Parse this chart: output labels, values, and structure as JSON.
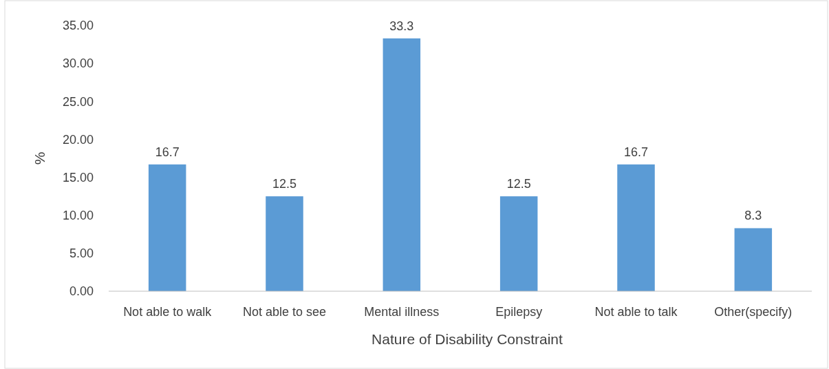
{
  "chart_data": {
    "type": "bar",
    "xlabel": "Nature of Disability Constraint",
    "ylabel": "%",
    "categories": [
      "Not able to walk",
      "Not able to see",
      "Mental illness",
      "Epilepsy",
      "Not able to talk",
      "Other(specify)"
    ],
    "values": [
      16.7,
      12.5,
      33.3,
      12.5,
      16.7,
      8.3
    ],
    "color": "#5b9bd5",
    "ylim": [
      0,
      35
    ],
    "yticks": [
      {
        "value": 0,
        "label": "0.00"
      },
      {
        "value": 5,
        "label": "5.00"
      },
      {
        "value": 10,
        "label": "10.00"
      },
      {
        "value": 15,
        "label": "15.00"
      },
      {
        "value": 20,
        "label": "20.00"
      },
      {
        "value": 25,
        "label": "25.00"
      },
      {
        "value": 30,
        "label": "30.00"
      },
      {
        "value": 35,
        "label": "35.00"
      }
    ],
    "data_labels": true
  }
}
